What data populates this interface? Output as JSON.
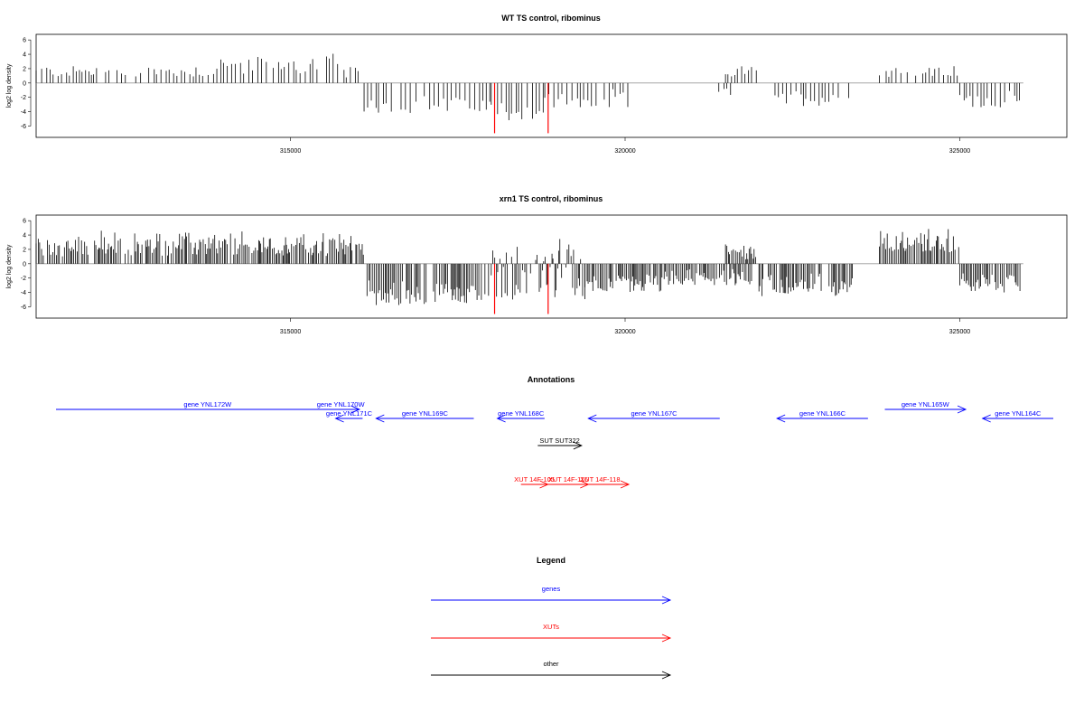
{
  "chart_data": [
    {
      "type": "bar",
      "title": "WT TS control, ribominus",
      "ylabel": "log2 log density",
      "xlim": [
        311200,
        326600
      ],
      "ylim": [
        -7.2,
        6.4
      ],
      "x_ticks": [
        "315000",
        "320000",
        "325000"
      ],
      "y_ticks": [
        "6",
        "4",
        "2",
        "0",
        "-2",
        "-4",
        "-6"
      ],
      "segments": [
        {
          "from": 311200,
          "to": 313900,
          "min": 0.8,
          "max": 2.8
        },
        {
          "from": 313900,
          "to": 315800,
          "min": 1.2,
          "max": 4.6
        },
        {
          "from": 315800,
          "to": 316100,
          "min": 0.6,
          "max": 2.4
        },
        {
          "from": 316100,
          "to": 318000,
          "min": -4.2,
          "max": -1.4
        },
        {
          "from": 318000,
          "to": 318800,
          "min": -5.2,
          "max": -2.0
        },
        {
          "from": 318800,
          "to": 320100,
          "min": -3.8,
          "max": -0.8
        },
        {
          "from": 321400,
          "to": 321600,
          "min": -1.8,
          "max": -0.6
        },
        {
          "from": 321500,
          "to": 322000,
          "min": 0.8,
          "max": 2.6
        },
        {
          "from": 322200,
          "to": 323400,
          "min": -3.2,
          "max": -0.6
        },
        {
          "from": 323800,
          "to": 325000,
          "min": 0.8,
          "max": 2.6
        },
        {
          "from": 325000,
          "to": 325900,
          "min": -3.4,
          "max": -1.0
        }
      ],
      "red_lines": [
        {
          "x": 318050,
          "y": -7.0
        },
        {
          "x": 318850,
          "y": -7.0
        }
      ]
    },
    {
      "type": "bar",
      "title": "xrn1 TS control, ribominus",
      "ylabel": "log2 log density",
      "xlim": [
        311200,
        326600
      ],
      "ylim": [
        -7.2,
        6.4
      ],
      "x_ticks": [
        "315000",
        "320000",
        "325000"
      ],
      "y_ticks": [
        "6",
        "4",
        "2",
        "0",
        "-2",
        "-4",
        "-6"
      ],
      "segments": [
        {
          "from": 311200,
          "to": 316100,
          "min": 1.0,
          "max": 4.8
        },
        {
          "from": 316100,
          "to": 318000,
          "min": -5.8,
          "max": -2.0
        },
        {
          "from": 318000,
          "to": 319400,
          "min": -5.0,
          "max": 4.0
        },
        {
          "from": 319400,
          "to": 320600,
          "min": -4.0,
          "max": -1.0
        },
        {
          "from": 320600,
          "to": 321900,
          "min": -3.0,
          "max": -0.6
        },
        {
          "from": 321500,
          "to": 322000,
          "min": 0.6,
          "max": 3.2
        },
        {
          "from": 322000,
          "to": 323400,
          "min": -4.6,
          "max": -1.0
        },
        {
          "from": 323800,
          "to": 325000,
          "min": 1.6,
          "max": 5.2
        },
        {
          "from": 325000,
          "to": 325900,
          "min": -4.0,
          "max": -1.0
        }
      ],
      "red_lines": [
        {
          "x": 318050,
          "y": -7.0
        },
        {
          "x": 318850,
          "y": -7.0
        }
      ]
    }
  ],
  "annotations": {
    "title": "Annotations",
    "features": [
      {
        "label": "gene YNL172W",
        "type": "gene",
        "from": 311500,
        "to": 316000,
        "dir": "right",
        "row": 0
      },
      {
        "label": "gene YNL170W",
        "type": "gene",
        "from": 315450,
        "to": 316000,
        "dir": "right",
        "row": 0
      },
      {
        "label": "gene YNL171C",
        "type": "gene",
        "from": 315650,
        "to": 316050,
        "dir": "left",
        "row": 1
      },
      {
        "label": "gene YNL169C",
        "type": "gene",
        "from": 316250,
        "to": 317700,
        "dir": "left",
        "row": 1
      },
      {
        "label": "gene YNL168C",
        "type": "gene",
        "from": 318050,
        "to": 318750,
        "dir": "left",
        "row": 1
      },
      {
        "label": "gene YNL167C",
        "type": "gene",
        "from": 319400,
        "to": 321350,
        "dir": "left",
        "row": 1
      },
      {
        "label": "gene YNL166C",
        "type": "gene",
        "from": 322200,
        "to": 323550,
        "dir": "left",
        "row": 1
      },
      {
        "label": "gene YNL165W",
        "type": "gene",
        "from": 323800,
        "to": 325000,
        "dir": "right",
        "row": 0
      },
      {
        "label": "gene YNL164C",
        "type": "gene",
        "from": 325250,
        "to": 326300,
        "dir": "left",
        "row": 1
      },
      {
        "label": "SUT SUT322",
        "type": "other",
        "from": 318650,
        "to": 319300,
        "dir": "right",
        "row": 2
      },
      {
        "label": "XUT 14F-105",
        "type": "xut",
        "from": 318400,
        "to": 318800,
        "dir": "right",
        "row": 3
      },
      {
        "label": "XUT 14F-116",
        "type": "xut",
        "from": 318800,
        "to": 319400,
        "dir": "right",
        "row": 3
      },
      {
        "label": "XUT 14F-118",
        "type": "xut",
        "from": 319150,
        "to": 320000,
        "dir": "right",
        "row": 3
      }
    ]
  },
  "legend": {
    "title": "Legend",
    "items": [
      {
        "label": "genes",
        "color": "#0000ff"
      },
      {
        "label": "XUTs",
        "color": "#ff0000"
      },
      {
        "label": "other",
        "color": "#000000"
      }
    ]
  },
  "colors": {
    "gene": "#0000ff",
    "xut": "#ff0000",
    "other": "#000000",
    "bar": "#000000",
    "highlight": "#ff0000",
    "baseline": "#9a9a9a"
  }
}
